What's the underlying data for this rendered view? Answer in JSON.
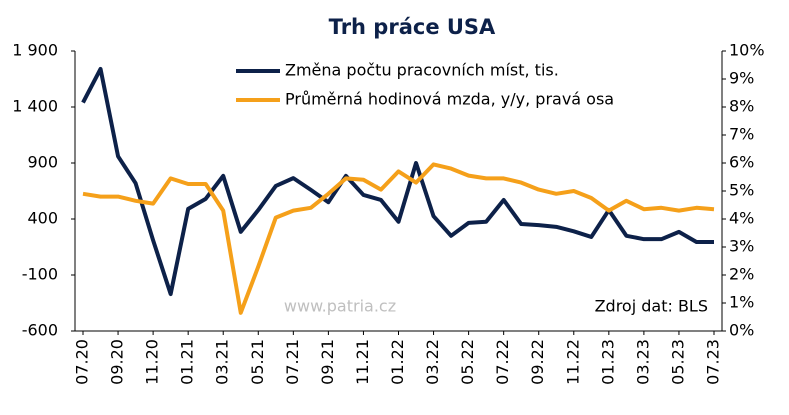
{
  "chart_data": {
    "type": "line",
    "title": "Trh práce USA",
    "categories": [
      "07.20",
      null,
      "09.20",
      null,
      "11.20",
      null,
      "01.21",
      null,
      "03.21",
      null,
      "05.21",
      null,
      "07.21",
      null,
      "09.21",
      null,
      "11.21",
      null,
      "01.22",
      null,
      "03.22",
      null,
      "05.22",
      null,
      "07.22",
      null,
      "09.22",
      null,
      "11.22",
      null,
      "01.23",
      null,
      "03.23",
      null,
      "05.23",
      null,
      "07.23"
    ],
    "series": [
      {
        "name": "Změna počtu pracovních míst, tis.",
        "color": "#0d2149",
        "values": [
          1440,
          1740,
          960,
          720,
          210,
          -270,
          490,
          580,
          785,
          285,
          480,
          695,
          765,
          660,
          550,
          785,
          615,
          570,
          375,
          900,
          425,
          250,
          365,
          375,
          570,
          355,
          345,
          330,
          290,
          240,
          480,
          250,
          220,
          220,
          285,
          195,
          195
        ]
      },
      {
        "name": "Průměrná hodinová mzda, y/y, pravá osa",
        "color": "#f5a01a",
        "axis": "y2",
        "values": [
          4.9,
          4.8,
          4.8,
          4.65,
          4.55,
          5.45,
          5.25,
          5.25,
          4.3,
          0.65,
          2.3,
          4.05,
          4.3,
          4.4,
          4.9,
          5.45,
          5.4,
          5.05,
          5.7,
          5.3,
          5.95,
          5.8,
          5.55,
          5.45,
          5.45,
          5.3,
          5.05,
          4.9,
          5.0,
          4.75,
          4.3,
          4.65,
          4.35,
          4.4,
          4.3,
          4.4,
          4.35
        ]
      }
    ],
    "ylim": [
      -600,
      1900
    ],
    "yticks": [
      -600,
      -100,
      400,
      900,
      {
        "value": 1400,
        "label": "1 400"
      },
      {
        "value": 1900,
        "label": "1 900"
      }
    ],
    "y2lim": [
      0,
      10
    ],
    "y2ticks": [
      {
        "value": 0,
        "label": "0%"
      },
      {
        "value": 1,
        "label": "1%"
      },
      {
        "value": 2,
        "label": "2%"
      },
      {
        "value": 3,
        "label": "3%"
      },
      {
        "value": 4,
        "label": "4%"
      },
      {
        "value": 5,
        "label": "5%"
      },
      {
        "value": 6,
        "label": "6%"
      },
      {
        "value": 7,
        "label": "7%"
      },
      {
        "value": 8,
        "label": "8%"
      },
      {
        "value": 9,
        "label": "9%"
      },
      {
        "value": 10,
        "label": "10%"
      }
    ],
    "annotations": [
      "www.patria.cz",
      "Zdroj dat: BLS"
    ],
    "legend": "top"
  }
}
